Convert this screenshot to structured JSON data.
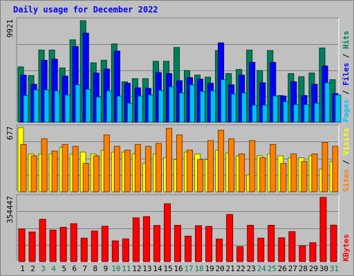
{
  "title": "Daily usage for December 2022",
  "colors": {
    "hits": "#00805c",
    "files": "#0000ff",
    "pages": "#00c0ff",
    "visits": "#ffff00",
    "sites": "#ff8000",
    "kbytes": "#ff0000",
    "weekend_day": "#00805c",
    "weekday": "#000000"
  },
  "chart_data": [
    {
      "type": "bar",
      "name": "hits-files-pages",
      "ymax_label": "9921",
      "ylim": [
        0,
        9921
      ],
      "legend": [
        "Pages",
        "Files",
        "Hits"
      ],
      "series": [
        {
          "name": "Hits",
          "values": [
            5400,
            4550,
            7050,
            7050,
            5300,
            8050,
            9921,
            5800,
            6050,
            7650,
            3950,
            4250,
            4250,
            5950,
            5950,
            7300,
            5050,
            4600,
            4400,
            7000,
            4750,
            5150,
            7050,
            5050,
            7000,
            2600,
            4750,
            4450,
            4800,
            7250,
            4150
          ]
        },
        {
          "name": "Files",
          "values": [
            4600,
            3700,
            6050,
            6150,
            4500,
            7400,
            8700,
            4800,
            5200,
            6950,
            3800,
            3350,
            3300,
            4850,
            4750,
            4050,
            4350,
            4200,
            3800,
            7750,
            3650,
            4600,
            5850,
            3850,
            5850,
            2550,
            3950,
            2600,
            3700,
            5500,
            2800
          ]
        },
        {
          "name": "Pages",
          "values": [
            2600,
            3150,
            3150,
            3050,
            2650,
            3650,
            3200,
            2450,
            3050,
            2550,
            1850,
            2550,
            2650,
            3100,
            3450,
            2850,
            3650,
            3000,
            3050,
            4150,
            2750,
            2850,
            1650,
            1650,
            2550,
            2000,
            1700,
            1700,
            1850,
            3850,
            2650
          ]
        }
      ]
    },
    {
      "type": "bar",
      "name": "visits-sites",
      "ymax_label": "677",
      "ylim": [
        0,
        677
      ],
      "legend": [
        "Sites",
        "Visits"
      ],
      "series": [
        {
          "name": "Visits",
          "values": [
            677,
            400,
            400,
            400,
            470,
            400,
            420,
            400,
            440,
            420,
            420,
            400,
            300,
            400,
            360,
            340,
            420,
            400,
            340,
            440,
            410,
            380,
            180,
            380,
            400,
            380,
            360,
            360,
            380,
            240,
            320
          ]
        },
        {
          "name": "Sites",
          "values": [
            500,
            380,
            560,
            430,
            500,
            480,
            300,
            380,
            600,
            480,
            440,
            500,
            480,
            510,
            670,
            600,
            440,
            340,
            540,
            650,
            560,
            400,
            540,
            360,
            500,
            300,
            400,
            320,
            400,
            520,
            480
          ]
        }
      ]
    },
    {
      "type": "bar",
      "name": "kbytes",
      "ymax_label": "354447",
      "ylim": [
        0,
        354447
      ],
      "legend": [
        "KBytes"
      ],
      "series": [
        {
          "name": "KBytes",
          "values": [
            180000,
            163000,
            233000,
            173000,
            189000,
            209000,
            129000,
            168000,
            195000,
            114000,
            125000,
            241000,
            248000,
            199000,
            319000,
            200000,
            140000,
            198000,
            194000,
            124000,
            260000,
            82000,
            200000,
            129000,
            200000,
            131000,
            165000,
            87000,
            104000,
            354447,
            201000
          ]
        }
      ]
    }
  ],
  "x_days": [
    "1",
    "2",
    "3",
    "4",
    "5",
    "6",
    "7",
    "8",
    "9",
    "10",
    "11",
    "12",
    "13",
    "14",
    "15",
    "16",
    "17",
    "18",
    "19",
    "20",
    "21",
    "22",
    "23",
    "24",
    "25",
    "26",
    "27",
    "28",
    "29",
    "30",
    "31"
  ],
  "weekend_days": [
    "3",
    "4",
    "10",
    "11",
    "17",
    "18",
    "24",
    "25",
    "31"
  ]
}
